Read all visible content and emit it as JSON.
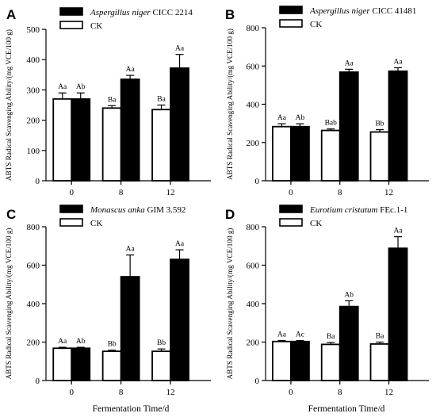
{
  "figure": {
    "xlabel": "Fermentation Time/d"
  },
  "chart_data": [
    {
      "panel": "A",
      "type": "bar",
      "title": "",
      "ylabel": "ABTS Radical Scavenging Ability/(mg VCE/100 g)",
      "xlabel": "",
      "categories": [
        "0",
        "8",
        "12"
      ],
      "ylim": [
        0,
        500
      ],
      "yticks": [
        0,
        100,
        200,
        300,
        400,
        500
      ],
      "legend_position": "top-left",
      "series": [
        {
          "name": "CK",
          "name_italic": "",
          "name_rest": "CK",
          "fill": "#ffffff",
          "values": [
            270,
            240,
            235
          ],
          "errors": [
            20,
            8,
            15
          ],
          "labels": [
            "Aa",
            "Ba",
            "Ba"
          ]
        },
        {
          "name": "Aspergillus niger CICC 2214",
          "name_italic": "Aspergillus niger",
          "name_rest": " CICC 2214",
          "fill": "#000000",
          "values": [
            270,
            335,
            372
          ],
          "errors": [
            20,
            13,
            45
          ],
          "labels": [
            "Ab",
            "Aa",
            "Aa"
          ]
        }
      ]
    },
    {
      "panel": "B",
      "type": "bar",
      "title": "",
      "ylabel": "ABTS Radical Scavenging Ability/(mg VCE/100 g)",
      "xlabel": "",
      "categories": [
        "0",
        "8",
        "12"
      ],
      "ylim": [
        0,
        800
      ],
      "yticks": [
        0,
        200,
        400,
        600,
        800
      ],
      "legend_position": "top-left",
      "series": [
        {
          "name": "CK",
          "name_italic": "",
          "name_rest": "CK",
          "fill": "#ffffff",
          "values": [
            283,
            263,
            255
          ],
          "errors": [
            15,
            8,
            12
          ],
          "labels": [
            "Aa",
            "Bab",
            "Bb"
          ]
        },
        {
          "name": "Aspergillus niger CICC 41481",
          "name_italic": "Aspergillus niger",
          "name_rest": " CICC 41481",
          "fill": "#000000",
          "values": [
            283,
            568,
            573
          ],
          "errors": [
            15,
            15,
            18
          ],
          "labels": [
            "Ab",
            "Aa",
            "Aa"
          ]
        }
      ]
    },
    {
      "panel": "C",
      "type": "bar",
      "title": "",
      "ylabel": "ABTS Radical Scavenging Ability/(mg VCE/100 g)",
      "xlabel": "",
      "categories": [
        "0",
        "8",
        "12"
      ],
      "ylim": [
        0,
        800
      ],
      "yticks": [
        0,
        200,
        400,
        600,
        800
      ],
      "legend_position": "top-left",
      "series": [
        {
          "name": "CK",
          "name_italic": "",
          "name_rest": "CK",
          "fill": "#ffffff",
          "values": [
            168,
            152,
            152
          ],
          "errors": [
            5,
            6,
            12
          ],
          "labels": [
            "Aa",
            "Bb",
            "Bb"
          ]
        },
        {
          "name": "Monascus anka GIM 3.592",
          "name_italic": "Monascus anka",
          "name_rest": " GIM 3.592",
          "fill": "#000000",
          "values": [
            168,
            540,
            630
          ],
          "errors": [
            5,
            113,
            50
          ],
          "labels": [
            "Ab",
            "Aa",
            "Aa"
          ]
        }
      ]
    },
    {
      "panel": "D",
      "type": "bar",
      "title": "",
      "ylabel": "ABTS Radical Scavenging Ability/(mg VCE/100 g)",
      "xlabel": "",
      "categories": [
        "0",
        "8",
        "12"
      ],
      "ylim": [
        0,
        800
      ],
      "yticks": [
        0,
        200,
        400,
        600,
        800
      ],
      "legend_position": "top-left",
      "series": [
        {
          "name": "CK",
          "name_italic": "",
          "name_rest": "CK",
          "fill": "#ffffff",
          "values": [
            203,
            188,
            190
          ],
          "errors": [
            5,
            10,
            10
          ],
          "labels": [
            "Aa",
            "Ba",
            "Ba"
          ]
        },
        {
          "name": "Eurotium cristatum FEc.1-1",
          "name_italic": "Eurotium cristatum",
          "name_rest": " FEc.1-1",
          "fill": "#000000",
          "values": [
            203,
            385,
            688
          ],
          "errors": [
            5,
            30,
            60
          ],
          "labels": [
            "Ac",
            "Ab",
            "Aa"
          ]
        }
      ]
    }
  ]
}
